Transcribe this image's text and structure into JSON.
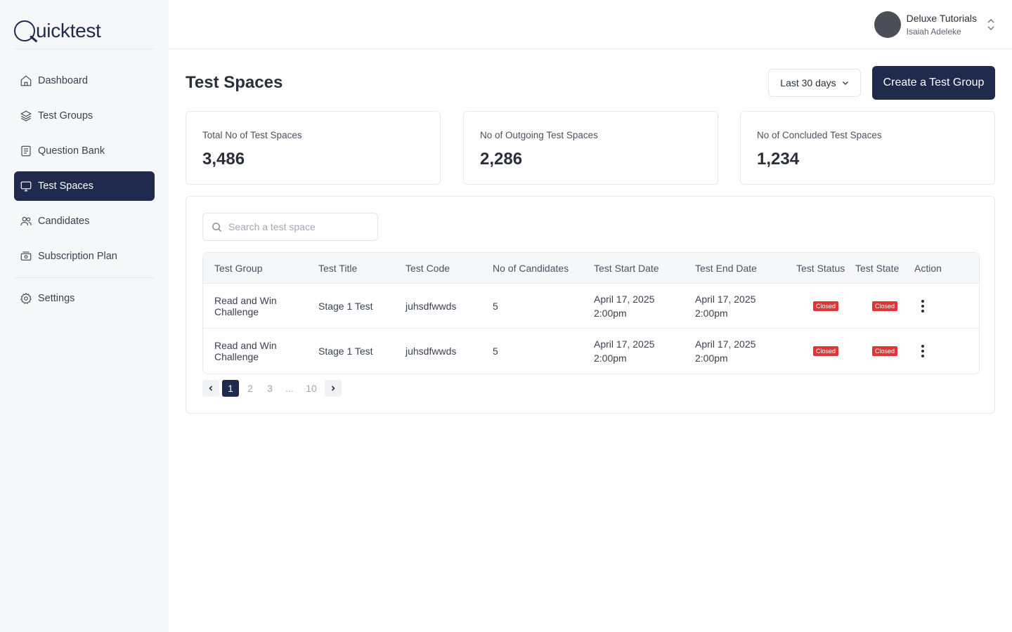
{
  "app": {
    "logo_text": "uicktest"
  },
  "sidebar": {
    "items": [
      {
        "label": "Dashboard",
        "icon": "home-icon"
      },
      {
        "label": "Test Groups",
        "icon": "layers-icon"
      },
      {
        "label": "Question Bank",
        "icon": "book-icon"
      },
      {
        "label": "Test Spaces",
        "icon": "monitor-icon",
        "active": true
      },
      {
        "label": "Candidates",
        "icon": "users-icon"
      },
      {
        "label": "Subscription Plan",
        "icon": "money-icon"
      }
    ],
    "settings_label": "Settings"
  },
  "user": {
    "org": "Deluxe Tutorials",
    "name": "Isaiah Adeleke"
  },
  "header": {
    "title": "Test Spaces",
    "range_label": "Last 30 days",
    "create_label": "Create a Test Group"
  },
  "stats": [
    {
      "label": "Total No of Test Spaces",
      "value": "3,486"
    },
    {
      "label": "No of Outgoing Test Spaces",
      "value": "2,286"
    },
    {
      "label": "No of Concluded Test Spaces",
      "value": "1,234"
    }
  ],
  "search": {
    "placeholder": "Search a test space",
    "value": ""
  },
  "table": {
    "columns": [
      "Test Group",
      "Test Title",
      "Test Code",
      "No of Candidates",
      "Test Start Date",
      "Test End Date",
      "Test Status",
      "Test State",
      "Action"
    ],
    "rows": [
      {
        "group": "Read and Win Challenge",
        "title": "Stage 1 Test",
        "code": "juhsdfwwds",
        "candidates": "5",
        "start_date": "April 17, 2025",
        "start_time": "2:00pm",
        "end_date": "April 17, 2025",
        "end_time": "2:00pm",
        "status": "Closed",
        "state": "Closed"
      },
      {
        "group": "Read and Win Challenge",
        "title": "Stage 1 Test",
        "code": "juhsdfwwds",
        "candidates": "5",
        "start_date": "April 17, 2025",
        "start_time": "2:00pm",
        "end_date": "April 17, 2025",
        "end_time": "2:00pm",
        "status": "Closed",
        "state": "Closed"
      }
    ]
  },
  "pagination": {
    "pages": [
      "1",
      "2",
      "3",
      "...",
      "10"
    ],
    "current": "1"
  },
  "colors": {
    "primary": "#1f2a4d",
    "badge": "#e03535",
    "sidebar_bg": "#f6f7f9"
  }
}
